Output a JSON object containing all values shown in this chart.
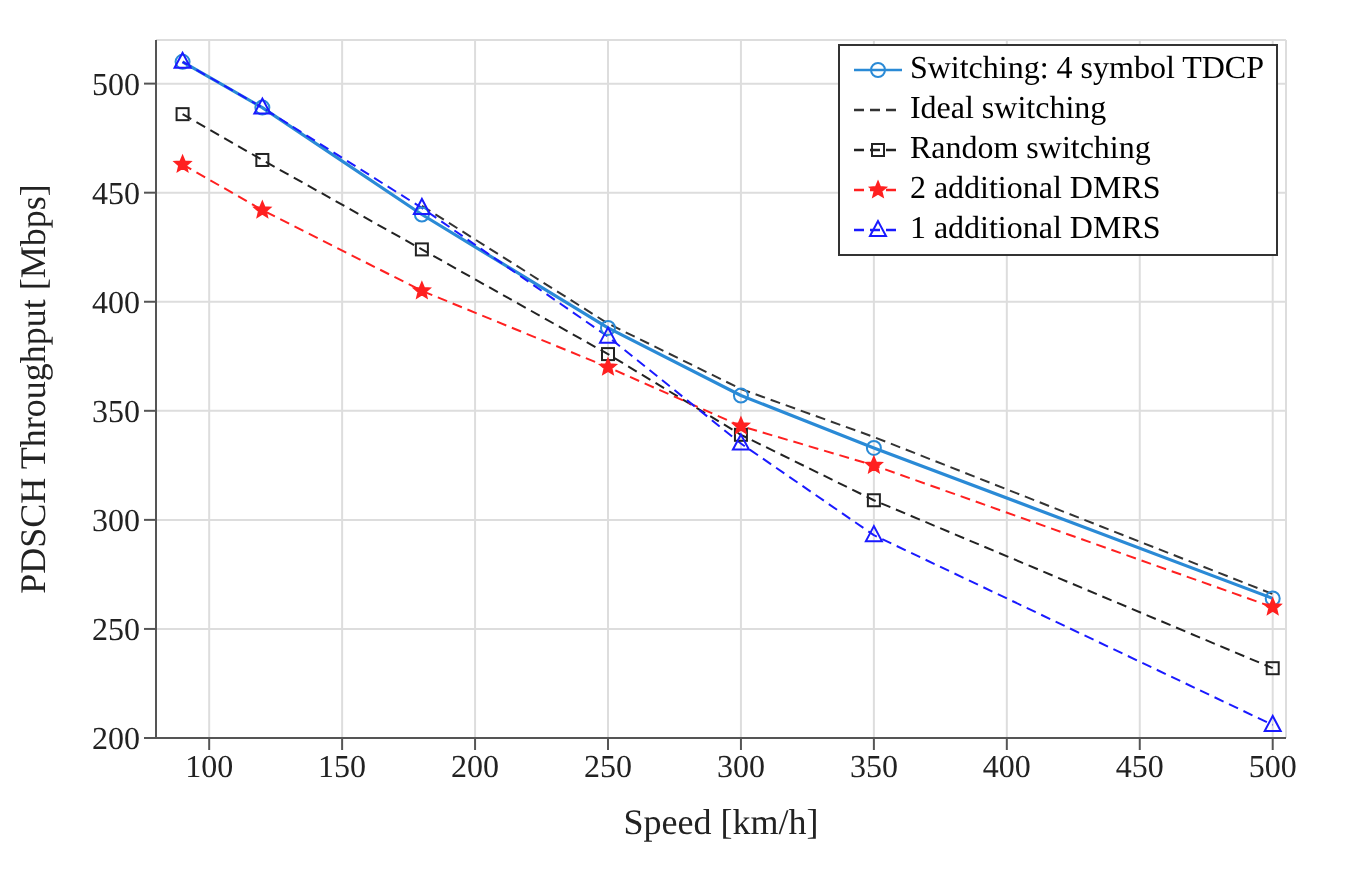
{
  "chart_data": {
    "type": "line",
    "xlabel": "Speed [km/h]",
    "ylabel": "PDSCH Throughput [Mbps]",
    "x": [
      90,
      120,
      180,
      250,
      300,
      350,
      500
    ],
    "xlim": [
      80,
      505
    ],
    "xticks": [
      100,
      150,
      200,
      250,
      300,
      350,
      400,
      450,
      500
    ],
    "ylim": [
      200,
      520
    ],
    "yticks": [
      200,
      250,
      300,
      350,
      400,
      450,
      500
    ],
    "grid": true,
    "legend": "top right",
    "series": [
      {
        "name": "Switching: 4 symbol TDCP",
        "color": "#2a8ad6",
        "marker": "circle",
        "line_style": "solid",
        "values": [
          510,
          489,
          440,
          388,
          357,
          333,
          264
        ]
      },
      {
        "name": "Ideal switching",
        "color": "#333333",
        "marker": "none",
        "line_style": "dashed",
        "values": [
          null,
          null,
          444,
          390,
          360,
          338,
          266
        ]
      },
      {
        "name": "Random switching",
        "color": "#222222",
        "marker": "square",
        "line_style": "dashed",
        "values": [
          486,
          465,
          424,
          376,
          339,
          309,
          232
        ]
      },
      {
        "name": "2 additional DMRS",
        "color": "#ff2020",
        "marker": "star",
        "line_style": "dashed",
        "values": [
          463,
          442,
          405,
          370,
          343,
          325,
          260
        ]
      },
      {
        "name": "1 additional DMRS",
        "color": "#1a1aff",
        "marker": "triangle",
        "line_style": "dashed",
        "values": [
          510,
          489,
          443,
          384,
          335,
          293,
          206
        ]
      }
    ]
  }
}
